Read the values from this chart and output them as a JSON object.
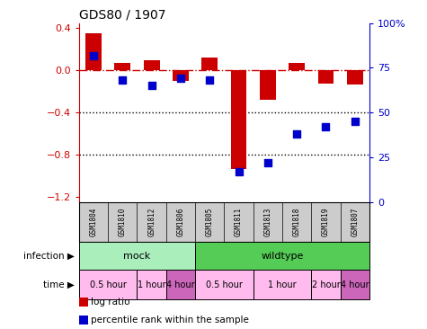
{
  "title": "GDS80 / 1907",
  "samples": [
    "GSM1804",
    "GSM1810",
    "GSM1812",
    "GSM1806",
    "GSM1805",
    "GSM1811",
    "GSM1813",
    "GSM1818",
    "GSM1819",
    "GSM1807"
  ],
  "log_ratio": [
    0.35,
    0.07,
    0.1,
    -0.1,
    0.12,
    -0.93,
    -0.28,
    0.07,
    -0.12,
    -0.13
  ],
  "percentile": [
    82,
    68,
    65,
    69,
    68,
    17,
    22,
    38,
    42,
    45
  ],
  "bar_color": "#cc0000",
  "dot_color": "#0000cc",
  "ylim": [
    -1.25,
    0.45
  ],
  "y2lim": [
    0,
    100
  ],
  "yticks": [
    0.4,
    0.0,
    -0.4,
    -0.8,
    -1.2
  ],
  "y2ticks": [
    100,
    75,
    50,
    25,
    0
  ],
  "y2ticklabels": [
    "100%",
    "75",
    "50",
    "25",
    "0"
  ],
  "hline_y": 0.0,
  "dotted_lines": [
    -0.4,
    -0.8
  ],
  "infection_groups": [
    {
      "label": "mock",
      "start": 0,
      "end": 4,
      "color": "#aaeebb"
    },
    {
      "label": "wildtype",
      "start": 4,
      "end": 10,
      "color": "#55cc55"
    }
  ],
  "time_groups": [
    {
      "label": "0.5 hour",
      "start": 0,
      "end": 2,
      "color": "#ffbbee"
    },
    {
      "label": "1 hour",
      "start": 2,
      "end": 3,
      "color": "#ffbbee"
    },
    {
      "label": "4 hour",
      "start": 3,
      "end": 4,
      "color": "#cc66bb"
    },
    {
      "label": "0.5 hour",
      "start": 4,
      "end": 6,
      "color": "#ffbbee"
    },
    {
      "label": "1 hour",
      "start": 6,
      "end": 8,
      "color": "#ffbbee"
    },
    {
      "label": "2 hour",
      "start": 8,
      "end": 9,
      "color": "#ffbbee"
    },
    {
      "label": "4 hour",
      "start": 9,
      "end": 10,
      "color": "#cc66bb"
    }
  ],
  "legend_items": [
    {
      "label": "log ratio",
      "color": "#cc0000"
    },
    {
      "label": "percentile rank within the sample",
      "color": "#0000cc"
    }
  ],
  "bar_width": 0.55,
  "dot_size": 30,
  "axis_label_color_left": "#cc0000",
  "axis_label_color_right": "#0000cc",
  "sample_bg_color": "#cccccc",
  "grid_color": "#000000"
}
